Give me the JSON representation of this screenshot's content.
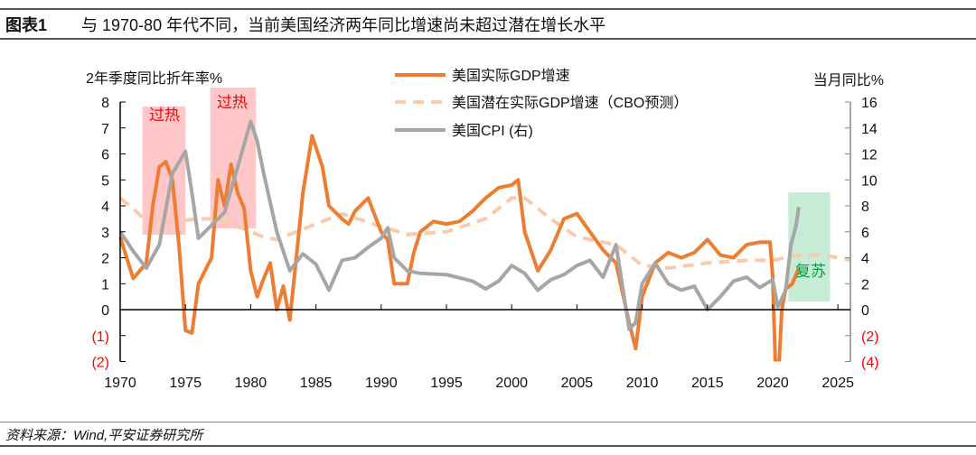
{
  "header": {
    "figure_no": "图表1",
    "title": "与 1970-80 年代不同，当前美国经济两年同比增速尚未超过潜在增长水平"
  },
  "source": "资料来源：Wind,平安证券研究所",
  "chart_data": {
    "type": "line",
    "ylabel_left": "2年季度同比折年率%",
    "ylabel_right": "当月同比%",
    "xlim": [
      1970,
      2026
    ],
    "ylim_left": [
      -2,
      8
    ],
    "ylim_right": [
      -4,
      16
    ],
    "x_ticks": [
      "1970",
      "1975",
      "1980",
      "1985",
      "1990",
      "1995",
      "2000",
      "2005",
      "2010",
      "2015",
      "2020",
      "2025"
    ],
    "y_ticks_left": [
      "(2)",
      "(1)",
      "0",
      "1",
      "2",
      "3",
      "4",
      "5",
      "6",
      "7",
      "8"
    ],
    "y_ticks_right": [
      "(4)",
      "(2)",
      "0",
      "2",
      "4",
      "6",
      "8",
      "10",
      "12",
      "14",
      "16"
    ],
    "negative_tick_color": "#ff0000",
    "legend_placement": "top-center",
    "annotations": [
      {
        "text": "过热",
        "x_range": [
          1971.7,
          1975
        ],
        "color": "#ff0000",
        "fill": "#ffc7c7"
      },
      {
        "text": "过热",
        "x_range": [
          1976.9,
          1980.4
        ],
        "color": "#ff0000",
        "fill": "#ffc7c7"
      },
      {
        "text": "复苏",
        "x_range": [
          2021.2,
          2024.4
        ],
        "color": "#00a040",
        "fill": "#c6ecd6"
      }
    ],
    "series": [
      {
        "name": "美国实际GDP增速",
        "axis": "left",
        "color": "#ed7d31",
        "style": "solid",
        "x": [
          1970,
          1971,
          1971.5,
          1972,
          1972.5,
          1973,
          1973.5,
          1974,
          1974.5,
          1975,
          1975.5,
          1976,
          1977,
          1977.5,
          1978,
          1978.5,
          1979,
          1979.5,
          1980,
          1980.5,
          1981,
          1981.5,
          1982,
          1982.5,
          1983,
          1983.5,
          1984,
          1984.7,
          1985.5,
          1986,
          1987,
          1987.5,
          1988,
          1989,
          1990,
          1990.5,
          1991,
          1992,
          1992.5,
          1993,
          1994,
          1995,
          1996,
          1997,
          1998,
          1999,
          2000,
          2000.5,
          2001,
          2002,
          2003,
          2004,
          2005,
          2006,
          2007,
          2008,
          2009,
          2009.5,
          2010,
          2011,
          2012,
          2013,
          2014,
          2015,
          2016,
          2017,
          2018,
          2019,
          2019.8,
          2020,
          2020.2,
          2020.5,
          2020.7,
          2021,
          2021.5,
          2022
        ],
        "y": [
          2.8,
          1.2,
          1.5,
          1.8,
          4.0,
          5.5,
          5.7,
          5.0,
          2.5,
          -0.8,
          -0.9,
          1.0,
          2.0,
          5.0,
          4.0,
          5.6,
          4.5,
          3.9,
          1.5,
          0.5,
          1.2,
          1.8,
          0.0,
          0.9,
          -0.4,
          2.0,
          4.5,
          6.7,
          5.5,
          4.0,
          3.5,
          3.3,
          3.8,
          4.3,
          3.0,
          2.7,
          1.0,
          1.0,
          2.2,
          3.0,
          3.4,
          3.3,
          3.4,
          3.8,
          4.3,
          4.7,
          4.8,
          5.0,
          3.0,
          1.5,
          2.3,
          3.5,
          3.7,
          3.0,
          2.3,
          1.8,
          -0.5,
          -1.5,
          0.5,
          1.8,
          2.2,
          2.0,
          2.2,
          2.7,
          2.1,
          2.0,
          2.5,
          2.6,
          2.6,
          1.3,
          -2,
          -2,
          0,
          0.8,
          1.0,
          1.6
        ]
      },
      {
        "name": "美国潜在实际GDP增速（CBO预测）",
        "axis": "left",
        "color": "#f8cbad",
        "style": "dashed",
        "x": [
          1970,
          1971,
          1972,
          1974,
          1976,
          1977.5,
          1979,
          1981,
          1982,
          1985,
          1987,
          1990,
          1992,
          1995,
          1998,
          2000,
          2001,
          2003,
          2005,
          2008,
          2010,
          2012,
          2015,
          2018,
          2020,
          2022,
          2024,
          2026
        ],
        "y": [
          4.3,
          3.9,
          3.4,
          3.4,
          3.5,
          3.5,
          3.2,
          2.8,
          2.7,
          3.3,
          3.7,
          3.2,
          2.9,
          3.0,
          3.5,
          4.3,
          4.3,
          3.5,
          2.8,
          2.5,
          1.7,
          1.6,
          1.8,
          1.9,
          1.9,
          2.1,
          2.1,
          1.9
        ]
      },
      {
        "name": "美国CPI (右)",
        "axis": "right",
        "color": "#a6a6a6",
        "style": "solid",
        "x": [
          1970,
          1971,
          1972,
          1973,
          1974,
          1975,
          1975.5,
          1976,
          1977,
          1978,
          1979,
          1980,
          1980.5,
          1981,
          1982,
          1983,
          1984,
          1985,
          1986,
          1987,
          1988,
          1989,
          1990,
          1990.5,
          1991,
          1992,
          1993,
          1995,
          1997,
          1998,
          1999,
          2000,
          2001,
          2002,
          2003,
          2004,
          2005,
          2006,
          2007,
          2008,
          2009,
          2009.5,
          2010,
          2011,
          2012,
          2013,
          2014,
          2015,
          2016,
          2017,
          2018,
          2019,
          2020,
          2020.4,
          2021,
          2021.4,
          2021.8,
          2022
        ],
        "y": [
          6.0,
          4.5,
          3.2,
          5.0,
          10.5,
          12.2,
          9.0,
          5.5,
          6.5,
          7.5,
          11.0,
          14.5,
          13.0,
          10.5,
          6.0,
          3.0,
          4.3,
          3.5,
          1.5,
          3.8,
          4.0,
          4.8,
          5.5,
          6.3,
          4.0,
          3.0,
          2.8,
          2.7,
          2.2,
          1.6,
          2.2,
          3.4,
          2.8,
          1.5,
          2.3,
          2.7,
          3.4,
          3.8,
          2.5,
          5.0,
          -1.5,
          -1.0,
          2.0,
          3.6,
          2.0,
          1.5,
          1.8,
          0.0,
          1.0,
          2.2,
          2.5,
          1.7,
          2.3,
          0.2,
          1.5,
          5.0,
          6.5,
          7.9
        ]
      }
    ]
  }
}
